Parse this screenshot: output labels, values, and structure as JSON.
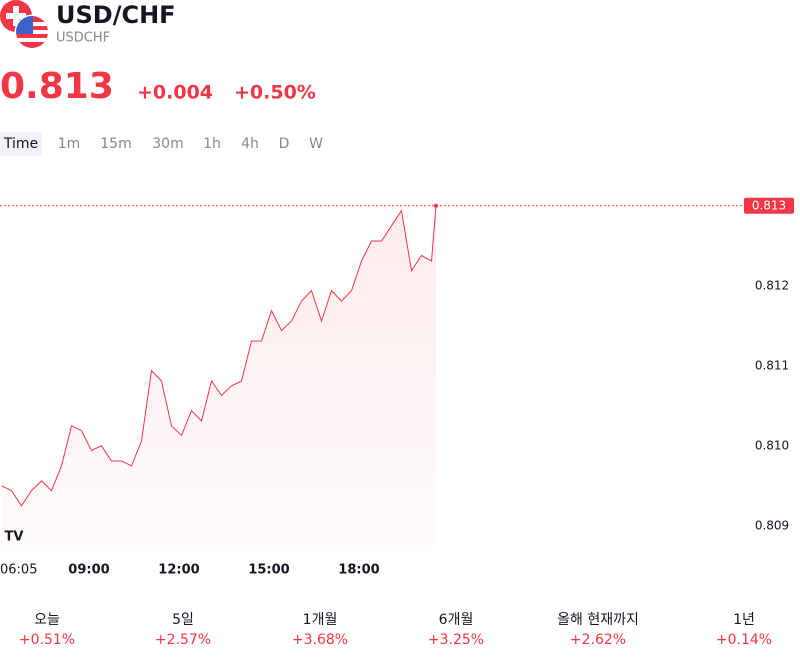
{
  "header": {
    "title": "USD/CHF",
    "subtitle": "USDCHF",
    "price": "0.813",
    "change": "+0.004",
    "change_percent": "+0.50%"
  },
  "tabs": [
    "Time",
    "1m",
    "15m",
    "30m",
    "1h",
    "4h",
    "D",
    "W"
  ],
  "chart_data": {
    "type": "line",
    "color": "#f23645",
    "x": [
      "06:05",
      "06:25",
      "06:45",
      "07:05",
      "07:25",
      "07:45",
      "08:05",
      "08:25",
      "08:45",
      "09:05",
      "09:25",
      "09:45",
      "10:05",
      "10:25",
      "10:45",
      "11:05",
      "11:25",
      "11:45",
      "12:05",
      "12:25",
      "12:45",
      "13:05",
      "13:25",
      "13:45",
      "14:05",
      "14:25",
      "14:45",
      "15:05",
      "15:25",
      "15:45",
      "16:05",
      "16:25",
      "16:45",
      "17:05",
      "17:25",
      "17:45",
      "18:05",
      "18:25",
      "18:45",
      "19:05",
      "19:25",
      "19:45",
      "20:05",
      "20:25",
      "20:34"
    ],
    "values": [
      0.8095,
      0.80944,
      0.80925,
      0.80944,
      0.80956,
      0.80944,
      0.80975,
      0.81025,
      0.81019,
      0.80994,
      0.81,
      0.80981,
      0.80981,
      0.80975,
      0.81006,
      0.81094,
      0.81081,
      0.81025,
      0.81013,
      0.81044,
      0.81031,
      0.81081,
      0.81063,
      0.81075,
      0.81081,
      0.81131,
      0.81131,
      0.81169,
      0.81144,
      0.81156,
      0.81181,
      0.81194,
      0.81156,
      0.81194,
      0.81181,
      0.81194,
      0.81231,
      0.81256,
      0.81256,
      0.81275,
      0.81294,
      0.81219,
      0.81238,
      0.81231,
      0.813
    ],
    "xlim": [
      "06:05",
      "20:34"
    ],
    "xticks": [
      "06:05",
      "09:00",
      "12:00",
      "15:00",
      "18:00"
    ],
    "ylim": [
      0.80876,
      0.81341
    ],
    "yticks": [
      0.809,
      {
        "value": 0.81,
        "label": "0.810"
      },
      0.811,
      0.812
    ]
  },
  "periods": [
    {
      "label": "오늘",
      "value": "+0.51%"
    },
    {
      "label": "5일",
      "value": "+2.57%"
    },
    {
      "label": "1개월",
      "value": "+3.68%"
    },
    {
      "label": "6개월",
      "value": "+3.25%"
    },
    {
      "label": "올해 현재까지",
      "value": "+2.62%"
    },
    {
      "label": "1년",
      "value": "+0.14%"
    }
  ]
}
